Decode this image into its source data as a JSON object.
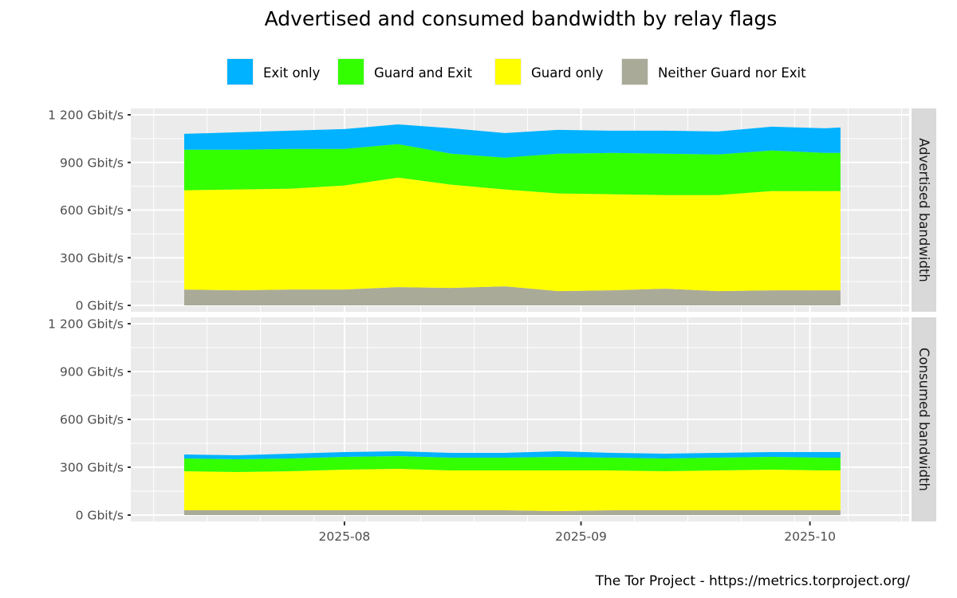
{
  "chart_data": {
    "type": "area",
    "title": "Advertised and consumed bandwidth by relay flags",
    "caption": "The Tor Project - https://metrics.torproject.org/",
    "xlabel": "",
    "ylabel": "",
    "legend_position": "top",
    "stacked": true,
    "grid": true,
    "x": [
      "2025-07-11",
      "2025-07-18",
      "2025-07-25",
      "2025-08-01",
      "2025-08-08",
      "2025-08-15",
      "2025-08-22",
      "2025-08-29",
      "2025-09-05",
      "2025-09-12",
      "2025-09-19",
      "2025-09-26",
      "2025-10-03",
      "2025-10-05"
    ],
    "xlim": [
      "2025-07-04",
      "2025-10-14"
    ],
    "x_ticks": [
      {
        "date": "2025-08-01",
        "label": "2025-08"
      },
      {
        "date": "2025-09-01",
        "label": "2025-09"
      },
      {
        "date": "2025-10-01",
        "label": "2025-10"
      }
    ],
    "y_ticks": [
      {
        "value": 0,
        "label": "0 Gbit/s"
      },
      {
        "value": 300,
        "label": "300 Gbit/s"
      },
      {
        "value": 600,
        "label": "600 Gbit/s"
      },
      {
        "value": 900,
        "label": "900 Gbit/s"
      },
      {
        "value": 1200,
        "label": "1 200 Gbit/s"
      }
    ],
    "ylim": [
      0,
      1200
    ],
    "y_unit": "Gbit/s",
    "legend": [
      {
        "name": "Exit only",
        "color": "#00b2ff"
      },
      {
        "name": "Guard and Exit",
        "color": "#33ff00"
      },
      {
        "name": "Guard only",
        "color": "#ffff00"
      },
      {
        "name": "Neither Guard nor Exit",
        "color": "#aaaa99"
      }
    ],
    "panels": [
      {
        "label": "Advertised bandwidth",
        "series": [
          {
            "name": "Neither Guard nor Exit",
            "values": [
              100,
              95,
              100,
              100,
              115,
              110,
              120,
              90,
              95,
              105,
              90,
              95,
              95,
              95
            ]
          },
          {
            "name": "Guard only",
            "values": [
              625,
              635,
              635,
              655,
              690,
              650,
              610,
              615,
              605,
              590,
              605,
              625,
              625,
              625
            ]
          },
          {
            "name": "Guard and Exit",
            "values": [
              255,
              250,
              250,
              230,
              210,
              195,
              200,
              250,
              260,
              260,
              255,
              255,
              240,
              240
            ]
          },
          {
            "name": "Exit only",
            "values": [
              100,
              110,
              115,
              125,
              125,
              160,
              155,
              150,
              140,
              145,
              145,
              150,
              155,
              160
            ]
          }
        ]
      },
      {
        "label": "Consumed bandwidth",
        "series": [
          {
            "name": "Neither Guard nor Exit",
            "values": [
              30,
              30,
              30,
              30,
              30,
              30,
              30,
              25,
              30,
              30,
              30,
              30,
              30,
              30
            ]
          },
          {
            "name": "Guard only",
            "values": [
              245,
              240,
              245,
              255,
              260,
              250,
              250,
              255,
              250,
              245,
              250,
              255,
              250,
              250
            ]
          },
          {
            "name": "Guard and Exit",
            "values": [
              80,
              80,
              80,
              80,
              80,
              80,
              80,
              85,
              80,
              80,
              80,
              80,
              80,
              80
            ]
          },
          {
            "name": "Exit only",
            "values": [
              25,
              25,
              30,
              30,
              30,
              30,
              30,
              35,
              30,
              30,
              30,
              30,
              35,
              35
            ]
          }
        ]
      }
    ]
  }
}
